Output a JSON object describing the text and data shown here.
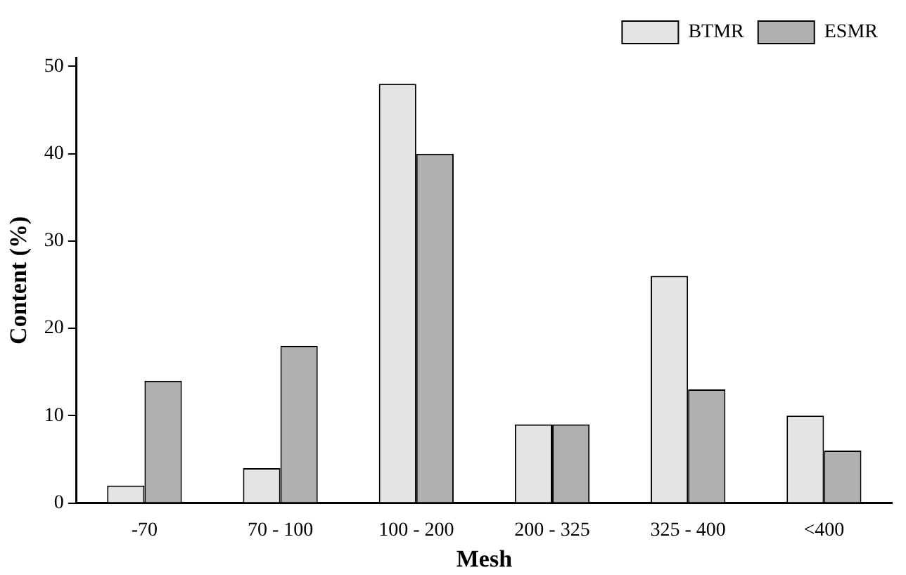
{
  "chart_data": {
    "type": "bar",
    "xlabel": "Mesh",
    "ylabel": "Content (%)",
    "categories": [
      "-70",
      "70 - 100",
      "100 - 200",
      "200 - 325",
      "325 - 400",
      "<400"
    ],
    "series": [
      {
        "name": "BTMR",
        "color": "#e4e4e4",
        "values": [
          2,
          4,
          48,
          9,
          26,
          10
        ]
      },
      {
        "name": "ESMR",
        "color": "#b0b0b0",
        "values": [
          14,
          18,
          40,
          9,
          13,
          6
        ]
      }
    ],
    "ylim": [
      0,
      51
    ],
    "yticks": [
      0,
      10,
      20,
      30,
      40,
      50
    ],
    "grid": false,
    "legend": "top right"
  }
}
